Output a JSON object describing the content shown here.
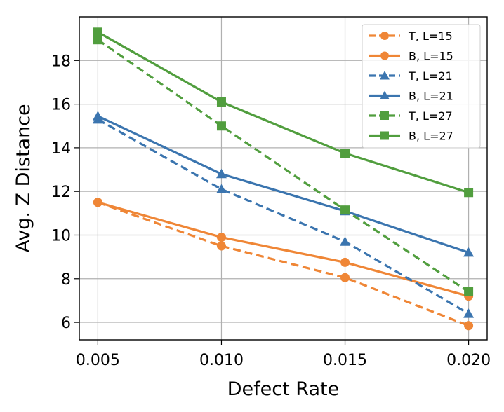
{
  "chart_data": {
    "type": "line",
    "title": "",
    "xlabel": "Defect Rate",
    "ylabel": "Avg. Z Distance",
    "x": [
      0.005,
      0.01,
      0.015,
      0.02
    ],
    "x_tick_labels": [
      "0.005",
      "0.010",
      "0.015",
      "0.020"
    ],
    "xlim": [
      0.00425,
      0.02075
    ],
    "ylim": [
      5.2,
      20.0
    ],
    "y_ticks": [
      6,
      8,
      10,
      12,
      14,
      16,
      18
    ],
    "y_tick_labels": [
      "6",
      "8",
      "10",
      "12",
      "14",
      "16",
      "18"
    ],
    "grid": true,
    "legend_position": "top-right",
    "series": [
      {
        "name": "T, L=15",
        "color": "#ef8636",
        "dash": true,
        "marker": "circle",
        "values": [
          11.5,
          9.5,
          8.05,
          5.85
        ]
      },
      {
        "name": "B, L=15",
        "color": "#ef8636",
        "dash": false,
        "marker": "circle",
        "values": [
          11.5,
          9.9,
          8.75,
          7.2
        ]
      },
      {
        "name": "T, L=21",
        "color": "#3b75af",
        "dash": true,
        "marker": "triangle",
        "values": [
          15.3,
          12.1,
          9.7,
          6.4
        ]
      },
      {
        "name": "B, L=21",
        "color": "#3b75af",
        "dash": false,
        "marker": "triangle",
        "values": [
          15.45,
          12.8,
          11.1,
          9.2
        ]
      },
      {
        "name": "T, L=27",
        "color": "#519e3e",
        "dash": true,
        "marker": "square",
        "values": [
          18.95,
          15.0,
          11.15,
          7.4
        ]
      },
      {
        "name": "B, L=27",
        "color": "#519e3e",
        "dash": false,
        "marker": "square",
        "values": [
          19.3,
          16.1,
          13.75,
          11.95
        ]
      }
    ]
  }
}
